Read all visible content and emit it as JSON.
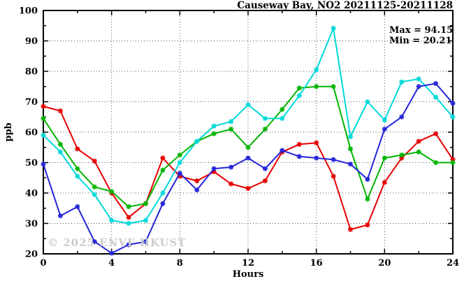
{
  "title": "Causeway Bay, NO2 20211125-20211128",
  "annotations": {
    "max": "Max = 94.15",
    "min": "Min = 20.21"
  },
  "watermark": "© 2025 ENVF HKUST",
  "axes": {
    "xlabel": "Hours",
    "ylabel": "ppb"
  },
  "chart_data": {
    "type": "line",
    "title": "Causeway Bay, NO2 20211125-20211128",
    "xlabel": "Hours",
    "ylabel": "ppb",
    "xlim": [
      0,
      24
    ],
    "ylim": [
      20,
      100
    ],
    "grid": "dotted-at-major-ticks",
    "legend_position": "none",
    "marker": "asterisk",
    "max_value": 94.15,
    "min_value": 20.21,
    "x": [
      0,
      1,
      2,
      3,
      4,
      5,
      6,
      7,
      8,
      9,
      10,
      11,
      12,
      13,
      14,
      15,
      16,
      17,
      18,
      19,
      20,
      21,
      22,
      23,
      24
    ],
    "x_major_ticks": [
      0,
      4,
      8,
      12,
      16,
      20,
      24
    ],
    "x_minor_ticks": [
      2,
      6,
      10,
      14,
      18,
      22
    ],
    "y_major_ticks": [
      20,
      30,
      40,
      50,
      60,
      70,
      80,
      90,
      100
    ],
    "y_minor_ticks": [
      25,
      35,
      45,
      55,
      65,
      75,
      85,
      95
    ],
    "series": [
      {
        "name": "series-red",
        "color": "#e60000",
        "values": [
          68.5,
          67,
          54.5,
          50.5,
          40,
          32,
          36.5,
          51.5,
          45.5,
          44,
          47,
          43,
          41.5,
          44,
          53.5,
          56,
          56.5,
          45.5,
          28,
          29.5,
          43.5,
          51.5,
          57,
          59.5,
          51
        ]
      },
      {
        "name": "series-green",
        "color": "#00b400",
        "values": [
          64.5,
          56,
          48,
          42,
          40.5,
          35.5,
          36.5,
          47.5,
          52.5,
          57,
          59.5,
          61,
          55,
          61,
          67.5,
          74.5,
          75,
          75,
          54.5,
          38,
          51.5,
          52.5,
          53.5,
          50,
          50
        ]
      },
      {
        "name": "series-cyan",
        "color": "#00d9d9",
        "values": [
          59,
          53.5,
          45.5,
          39.5,
          31,
          30,
          31,
          40,
          50,
          57,
          62,
          63.5,
          69,
          64.5,
          64.5,
          72,
          80.5,
          94.15,
          58.5,
          70,
          64,
          76.5,
          77.5,
          71.5,
          65
        ]
      },
      {
        "name": "series-blue",
        "color": "#2424d8",
        "values": [
          49.5,
          32.5,
          35.5,
          24,
          20.21,
          23,
          24,
          36.5,
          46.5,
          41,
          48,
          48.5,
          51.5,
          48,
          54,
          52,
          51.5,
          51,
          49.5,
          44.5,
          61,
          65,
          75,
          76,
          69.5
        ]
      }
    ]
  }
}
